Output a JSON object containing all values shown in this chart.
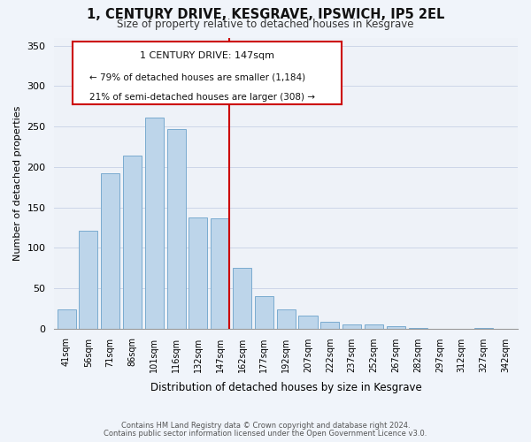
{
  "title": "1, CENTURY DRIVE, KESGRAVE, IPSWICH, IP5 2EL",
  "subtitle": "Size of property relative to detached houses in Kesgrave",
  "xlabel": "Distribution of detached houses by size in Kesgrave",
  "ylabel": "Number of detached properties",
  "bar_labels": [
    "41sqm",
    "56sqm",
    "71sqm",
    "86sqm",
    "101sqm",
    "116sqm",
    "132sqm",
    "147sqm",
    "162sqm",
    "177sqm",
    "192sqm",
    "207sqm",
    "222sqm",
    "237sqm",
    "252sqm",
    "267sqm",
    "282sqm",
    "297sqm",
    "312sqm",
    "327sqm",
    "342sqm"
  ],
  "bar_values": [
    24,
    121,
    192,
    214,
    261,
    247,
    137,
    136,
    75,
    40,
    24,
    16,
    8,
    5,
    5,
    3,
    1,
    0,
    0,
    1,
    0
  ],
  "bar_color": "#bdd5ea",
  "bar_edge_color": "#7aabcf",
  "highlight_index": 7,
  "highlight_line_color": "#cc0000",
  "ylim": [
    0,
    360
  ],
  "yticks": [
    0,
    50,
    100,
    150,
    200,
    250,
    300,
    350
  ],
  "annotation_title": "1 CENTURY DRIVE: 147sqm",
  "annotation_line1": "← 79% of detached houses are smaller (1,184)",
  "annotation_line2": "21% of semi-detached houses are larger (308) →",
  "annotation_box_color": "#ffffff",
  "annotation_box_edge": "#cc0000",
  "footer_line1": "Contains HM Land Registry data © Crown copyright and database right 2024.",
  "footer_line2": "Contains public sector information licensed under the Open Government Licence v3.0.",
  "background_color": "#f0f4fa",
  "plot_bg_color": "#eef2f8",
  "grid_color": "#ccd6e8"
}
